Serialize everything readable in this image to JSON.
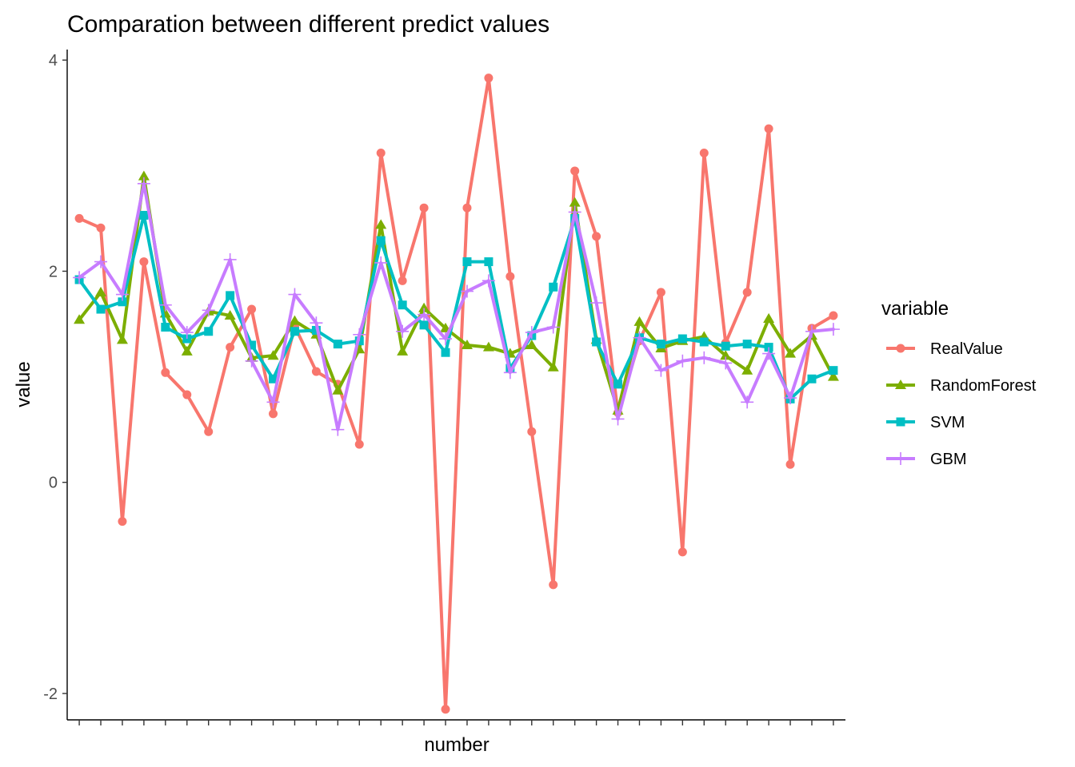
{
  "chart_data": {
    "type": "line",
    "title": "Comparation between different predict values",
    "xlabel": "number",
    "ylabel": "value",
    "ylim": [
      -2.25,
      4.1
    ],
    "yticks": [
      -2,
      0,
      2,
      4
    ],
    "x": [
      1,
      2,
      3,
      4,
      5,
      6,
      7,
      8,
      9,
      10,
      11,
      12,
      13,
      14,
      15,
      16,
      17,
      18,
      19,
      20,
      21,
      22,
      23,
      24,
      25,
      26,
      27,
      28,
      29,
      30,
      31,
      32,
      33,
      34,
      35,
      36
    ],
    "x_tick_labels_shown": false,
    "grid": false,
    "legend": {
      "title": "variable",
      "position": "right"
    },
    "series": [
      {
        "name": "RealValue",
        "color": "#F8766D",
        "marker": "circle",
        "values": [
          2.5,
          2.41,
          -0.37,
          2.09,
          1.04,
          0.83,
          0.48,
          1.28,
          1.64,
          0.65,
          1.48,
          1.05,
          0.93,
          0.36,
          3.12,
          1.91,
          2.6,
          -2.15,
          2.6,
          3.83,
          1.95,
          0.48,
          -0.97,
          2.95,
          2.33,
          0.66,
          1.34,
          1.8,
          -0.66,
          3.12,
          1.32,
          1.8,
          3.35,
          0.17,
          1.46,
          1.58
        ]
      },
      {
        "name": "RandomForest",
        "color": "#7CAE00",
        "marker": "triangle",
        "values": [
          1.54,
          1.8,
          1.35,
          2.9,
          1.6,
          1.24,
          1.62,
          1.58,
          1.18,
          1.2,
          1.53,
          1.4,
          0.87,
          1.26,
          2.44,
          1.24,
          1.65,
          1.46,
          1.3,
          1.28,
          1.22,
          1.3,
          1.09,
          2.65,
          1.35,
          0.68,
          1.52,
          1.27,
          1.34,
          1.38,
          1.2,
          1.06,
          1.55,
          1.22,
          1.39,
          1.0
        ]
      },
      {
        "name": "SVM",
        "color": "#00BFC4",
        "marker": "square",
        "values": [
          1.92,
          1.64,
          1.71,
          2.53,
          1.47,
          1.36,
          1.43,
          1.77,
          1.3,
          0.98,
          1.43,
          1.44,
          1.31,
          1.34,
          2.29,
          1.68,
          1.49,
          1.23,
          2.09,
          2.09,
          1.08,
          1.39,
          1.85,
          2.5,
          1.33,
          0.93,
          1.37,
          1.31,
          1.36,
          1.33,
          1.29,
          1.31,
          1.28,
          0.79,
          0.98,
          1.06
        ]
      },
      {
        "name": "GBM",
        "color": "#C77CFF",
        "marker": "cross",
        "values": [
          1.94,
          2.09,
          1.78,
          2.83,
          1.68,
          1.42,
          1.63,
          2.11,
          1.15,
          0.76,
          1.78,
          1.51,
          0.5,
          1.4,
          2.08,
          1.43,
          1.59,
          1.36,
          1.81,
          1.91,
          1.04,
          1.42,
          1.47,
          2.56,
          1.7,
          0.6,
          1.37,
          1.06,
          1.15,
          1.18,
          1.13,
          0.76,
          1.22,
          0.8,
          1.43,
          1.45
        ]
      }
    ]
  }
}
